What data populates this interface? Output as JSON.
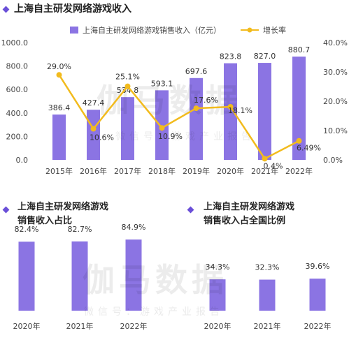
{
  "header": {
    "main_title": "上海自主研发网络游戏收入",
    "bottom_left_title_l1": "上海自主研发网络游戏",
    "bottom_left_title_l2": "销售收入占比",
    "bottom_right_title_l1": "上海自主研发网络游戏",
    "bottom_right_title_l2": "销售收入占全国比例"
  },
  "watermark": {
    "brand": "伽马数据",
    "sub": "微信号：游戏产业报告"
  },
  "colors": {
    "bar": "#8b74e3",
    "line": "#f2bb1d",
    "accent": "#6a4fd8"
  },
  "chart_data": [
    {
      "type": "bar+line",
      "categories": [
        "2015年",
        "2016年",
        "2017年",
        "2018年",
        "2019年",
        "2020年",
        "2021年",
        "2022年"
      ],
      "series": [
        {
          "name": "上海自主研发网络游戏销售收入（亿元）",
          "type": "bar",
          "axis": "left",
          "values": [
            386.4,
            427.4,
            534.8,
            593.1,
            697.6,
            823.8,
            827.0,
            880.7
          ],
          "labels": [
            "386.4",
            "427.4",
            "534.8",
            "593.1",
            "697.6",
            "823.8",
            "827.0",
            "880.7"
          ]
        },
        {
          "name": "增长率",
          "type": "line",
          "axis": "right",
          "values": [
            29.0,
            10.6,
            25.1,
            10.9,
            17.6,
            18.1,
            0.4,
            6.49
          ],
          "labels": [
            "29.0%",
            "10.6%",
            "25.1%",
            "10.9%",
            "17.6%",
            "18.1%",
            "0.4%",
            "6.49%"
          ]
        }
      ],
      "y_left": {
        "ylim": [
          0,
          1000
        ],
        "ticks": [
          "0.0",
          "200.0",
          "400.0",
          "600.0",
          "800.0",
          "1000.0"
        ]
      },
      "y_right": {
        "ylim": [
          0,
          40
        ],
        "ticks": [
          "0.0%",
          "10.0%",
          "20.0%",
          "30.0%",
          "40.0%"
        ]
      },
      "legend_position": "top",
      "grid": false
    },
    {
      "type": "bar",
      "categories": [
        "2020年",
        "2021年",
        "2022年"
      ],
      "values": [
        82.4,
        82.7,
        84.9
      ],
      "labels": [
        "82.4%",
        "82.7%",
        "84.9%"
      ]
    },
    {
      "type": "bar",
      "categories": [
        "2020年",
        "2021年",
        "2022年"
      ],
      "values": [
        34.3,
        32.3,
        39.6
      ],
      "labels": [
        "34.3%",
        "32.3%",
        "39.6%"
      ]
    }
  ]
}
